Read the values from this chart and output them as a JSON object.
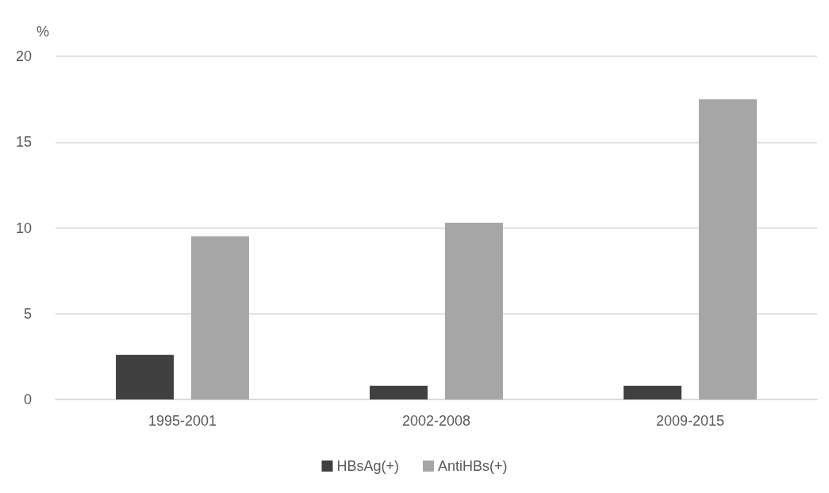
{
  "chart_data": {
    "type": "bar",
    "ylabel": "%",
    "categories": [
      "1995-2001",
      "2002-2008",
      "2009-2015"
    ],
    "series": [
      {
        "name": "HBsAg(+)",
        "color": "#404040",
        "values": [
          2.6,
          0.8,
          0.8
        ]
      },
      {
        "name": "AntiHBs(+)",
        "color": "#a6a6a6",
        "values": [
          9.5,
          10.3,
          17.5
        ]
      }
    ],
    "ylim": [
      0,
      20
    ],
    "yticks": [
      0,
      5,
      10,
      15,
      20
    ],
    "grid": "y",
    "legend": "bottom"
  }
}
